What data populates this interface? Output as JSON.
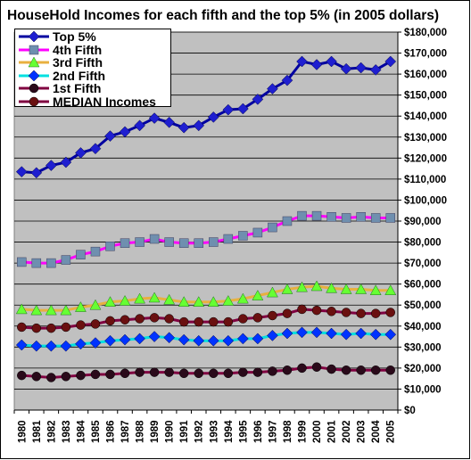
{
  "chart_data": {
    "type": "line",
    "title": "HouseHold Incomes for each fifth and the top 5% (in 2005 dollars)",
    "xlabel": "",
    "ylabel": "",
    "ylim": [
      0,
      180000
    ],
    "y_ticks": [
      0,
      10000,
      20000,
      30000,
      40000,
      50000,
      60000,
      70000,
      80000,
      90000,
      100000,
      110000,
      120000,
      130000,
      140000,
      150000,
      160000,
      170000,
      180000
    ],
    "y_tick_labels": [
      "$0",
      "$10,000",
      "$20,000",
      "$30,000",
      "$40,000",
      "$50,000",
      "$60,000",
      "$70,000",
      "$80,000",
      "$90,000",
      "$100,000",
      "$110,000",
      "$120,000",
      "$130,000",
      "$140,000",
      "$150,000",
      "$160,000",
      "$170,000",
      "$180,000"
    ],
    "categories": [
      "1980",
      "1981",
      "1982",
      "1983",
      "1984",
      "1985",
      "1986",
      "1987",
      "1988",
      "1989",
      "1990",
      "1991",
      "1992",
      "1993",
      "1994",
      "1995",
      "1996",
      "1997",
      "1998",
      "1999",
      "2000",
      "2001",
      "2002",
      "2003",
      "2004",
      "2005"
    ],
    "grid": true,
    "legend_position": "top-left",
    "plot_background": "#c0c0c0",
    "series": [
      {
        "name": "Top 5%",
        "color": "#0000a0",
        "marker": "diamond",
        "marker_color": "#1f1fd0",
        "values": [
          113500,
          113000,
          116500,
          118000,
          122500,
          124500,
          130500,
          132500,
          135500,
          139000,
          137000,
          134500,
          135500,
          139500,
          143000,
          143500,
          148000,
          153000,
          157000,
          166000,
          164500,
          166000,
          162500,
          163000,
          162000,
          166000
        ]
      },
      {
        "name": "4th Fifth",
        "color": "#ff00ff",
        "marker": "square",
        "marker_color": "#6f8faf",
        "values": [
          70500,
          70000,
          70000,
          71500,
          74000,
          75500,
          78000,
          79500,
          80000,
          81500,
          80000,
          79500,
          79500,
          80000,
          81500,
          83000,
          84500,
          87000,
          90000,
          92500,
          92500,
          92000,
          91500,
          92000,
          91500,
          91500
        ]
      },
      {
        "name": "3rd Fifth",
        "color": "#e8b040",
        "marker": "triangle",
        "marker_color": "#66ff33",
        "values": [
          48000,
          47500,
          47500,
          47500,
          49000,
          50000,
          51500,
          52000,
          53000,
          53500,
          52500,
          51500,
          51500,
          51500,
          52000,
          53000,
          54500,
          56000,
          57500,
          58500,
          59000,
          58000,
          57500,
          57500,
          57000,
          57000
        ]
      },
      {
        "name": "2nd Fifth",
        "color": "#00e0e0",
        "marker": "diamond",
        "marker_color": "#0033ff",
        "values": [
          31000,
          30500,
          30500,
          30500,
          31500,
          32000,
          33000,
          33500,
          34000,
          35000,
          34500,
          33500,
          33000,
          33000,
          33000,
          34000,
          34000,
          35500,
          36500,
          37000,
          37000,
          36500,
          36000,
          36500,
          36000,
          36000
        ]
      },
      {
        "name": "1st Fifth",
        "color": "#800040",
        "marker": "circle",
        "marker_color": "#2a0a1a",
        "values": [
          16500,
          16000,
          15500,
          16000,
          16500,
          17000,
          17000,
          17500,
          18000,
          18000,
          18000,
          17500,
          17500,
          17500,
          17500,
          18000,
          18000,
          18500,
          19000,
          20000,
          20500,
          19500,
          19000,
          19000,
          19000,
          19000
        ]
      },
      {
        "name": "MEDIAN Incomes",
        "color": "#800040",
        "marker": "circle",
        "marker_color": "#6a1010",
        "values": [
          39500,
          39000,
          39000,
          39500,
          40500,
          41000,
          42500,
          43000,
          43500,
          44000,
          43500,
          42000,
          42000,
          42000,
          42000,
          43500,
          44000,
          45000,
          46000,
          48000,
          47500,
          47000,
          46500,
          46000,
          46000,
          46500
        ]
      }
    ]
  }
}
